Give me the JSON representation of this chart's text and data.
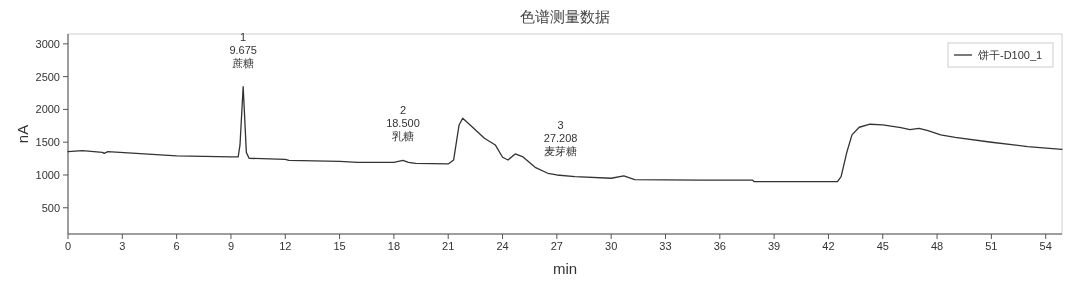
{
  "chart_data": {
    "type": "line",
    "title": "色谱测量数据",
    "xlabel": "min",
    "ylabel": "nA",
    "xlim": [
      0,
      54.9
    ],
    "ylim": [
      100,
      3150
    ],
    "xticks": [
      0,
      3,
      6,
      9,
      12,
      15,
      18,
      21,
      24,
      27,
      30,
      33,
      36,
      39,
      42,
      45,
      48,
      51,
      54
    ],
    "yticks": [
      500,
      1000,
      1500,
      2000,
      2500,
      3000
    ],
    "grid": false,
    "legend": "top right",
    "marker": "none",
    "line_style": "solid",
    "series": [
      {
        "name": "饼干-D100_1",
        "color": "#333333",
        "x": [
          0,
          0.8,
          1.9,
          2.0,
          2.2,
          6,
          9,
          9.4,
          9.5,
          9.675,
          9.85,
          10.0,
          12,
          12.2,
          15,
          16,
          18,
          18.5,
          18.8,
          19.2,
          21.0,
          21.3,
          21.6,
          21.8,
          22.3,
          23.0,
          23.6,
          24.0,
          24.3,
          24.7,
          25.1,
          25.8,
          26.5,
          27.0,
          28,
          30,
          30.7,
          31.3,
          33,
          34.9,
          37.8,
          37.9,
          42.5,
          42.7,
          43.0,
          43.3,
          43.7,
          44.3,
          45,
          46,
          46.5,
          47,
          47.5,
          48.2,
          49,
          51,
          53,
          54.9
        ],
        "values": [
          1356,
          1371,
          1345,
          1330,
          1355,
          1290,
          1275,
          1275,
          1458,
          2348,
          1345,
          1254,
          1239,
          1224,
          1208,
          1193,
          1193,
          1224,
          1193,
          1178,
          1168,
          1229,
          1763,
          1865,
          1738,
          1560,
          1458,
          1270,
          1229,
          1321,
          1280,
          1117,
          1026,
          1000,
          975,
          950,
          985,
          930,
          925,
          923,
          923,
          898,
          898,
          975,
          1331,
          1611,
          1728,
          1774,
          1763,
          1723,
          1692,
          1712,
          1677,
          1611,
          1575,
          1499,
          1433,
          1392
        ]
      }
    ],
    "annotations": [
      {
        "text": "1\n9.675\n蔗糖",
        "x": 9.675,
        "y": 2348
      },
      {
        "text": "2\n18.500\n乳糖",
        "x": 18.5,
        "y": 1224
      },
      {
        "text": "3\n27.208\n麦芽糖",
        "x": 27.208,
        "y": 1000
      }
    ]
  }
}
